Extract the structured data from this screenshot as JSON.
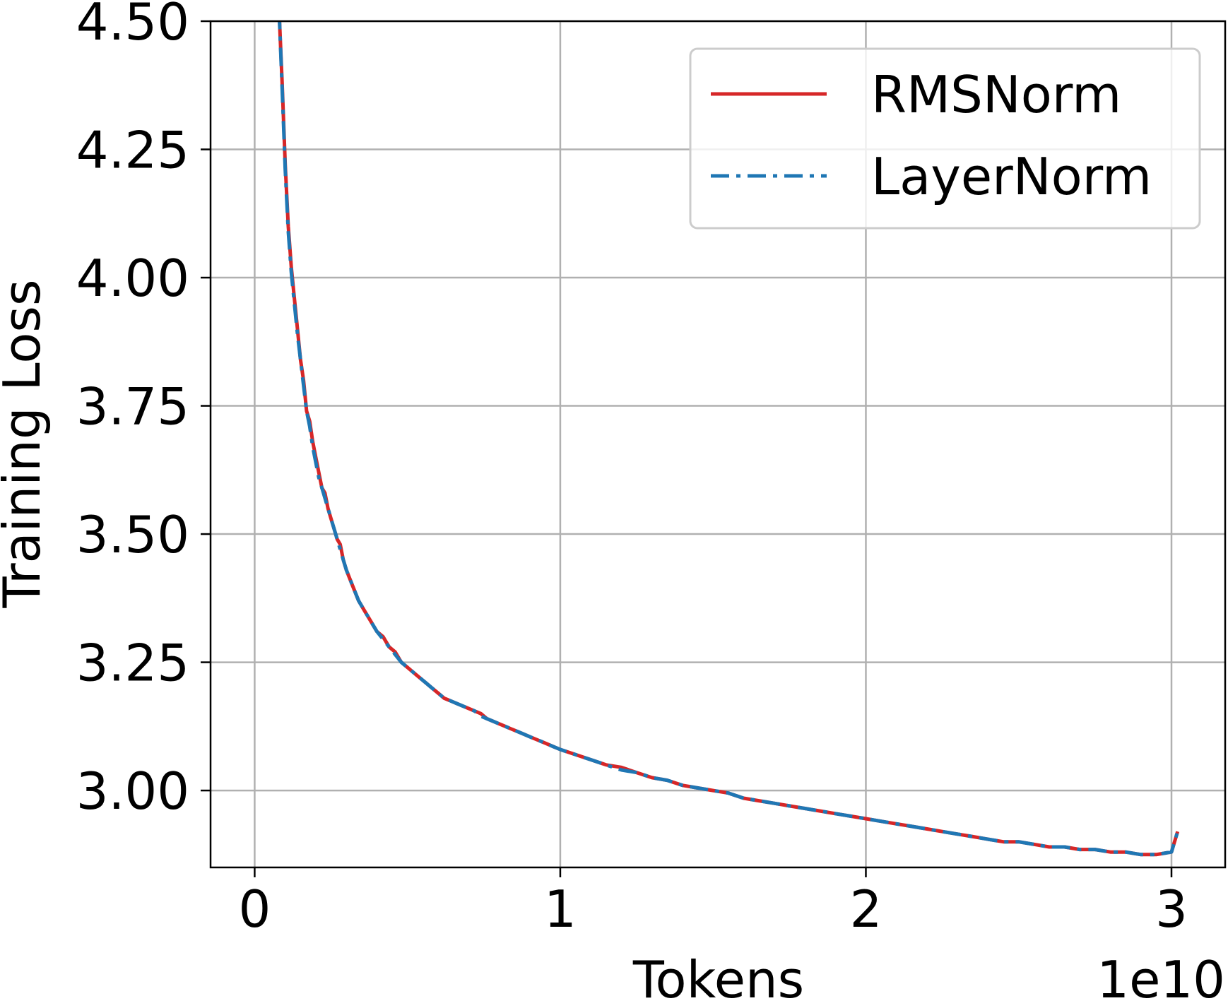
{
  "chart_data": {
    "type": "line",
    "title": "",
    "xlabel": "Tokens",
    "ylabel": "Training Loss",
    "x_scale_label": "1e10",
    "x_multiplier": 10000000000,
    "xlim": [
      -0.1443,
      3.1757
    ],
    "ylim": [
      2.85,
      4.5
    ],
    "x_ticks": [
      0,
      1,
      2,
      3
    ],
    "x_tick_labels": [
      "0",
      "1",
      "2",
      "3"
    ],
    "y_ticks": [
      3.0,
      3.25,
      3.5,
      3.75,
      4.0,
      4.25,
      4.5
    ],
    "y_tick_labels": [
      "3.00",
      "3.25",
      "3.50",
      "3.75",
      "4.00",
      "4.25",
      "4.50"
    ],
    "grid": true,
    "legend_position": "top-right",
    "series": [
      {
        "name": "RMSNorm",
        "color": "#d62728",
        "dash": "solid"
      },
      {
        "name": "LayerNorm",
        "color": "#1f77b4",
        "dash": "dashdot"
      }
    ],
    "x": [
      0.08,
      0.09,
      0.1,
      0.11,
      0.12,
      0.13,
      0.14,
      0.15,
      0.16,
      0.17,
      0.18,
      0.19,
      0.2,
      0.21,
      0.22,
      0.23,
      0.24,
      0.25,
      0.26,
      0.27,
      0.28,
      0.29,
      0.3,
      0.32,
      0.34,
      0.36,
      0.38,
      0.4,
      0.42,
      0.44,
      0.46,
      0.48,
      0.5,
      0.52,
      0.54,
      0.56,
      0.58,
      0.6,
      0.62,
      0.64,
      0.66,
      0.68,
      0.7,
      0.72,
      0.74,
      0.76,
      0.78,
      0.8,
      0.82,
      0.84,
      0.86,
      0.88,
      0.9,
      0.92,
      0.94,
      0.96,
      0.98,
      1.0,
      1.05,
      1.1,
      1.15,
      1.2,
      1.25,
      1.3,
      1.35,
      1.4,
      1.45,
      1.5,
      1.55,
      1.6,
      1.65,
      1.7,
      1.75,
      1.8,
      1.85,
      1.9,
      1.95,
      2.0,
      2.05,
      2.1,
      2.15,
      2.2,
      2.25,
      2.3,
      2.35,
      2.4,
      2.45,
      2.5,
      2.55,
      2.6,
      2.65,
      2.7,
      2.75,
      2.8,
      2.85,
      2.9,
      2.95,
      3.0,
      3.02
    ],
    "values_rms": [
      4.52,
      4.38,
      4.22,
      4.1,
      4.02,
      3.96,
      3.9,
      3.84,
      3.8,
      3.74,
      3.72,
      3.68,
      3.65,
      3.62,
      3.59,
      3.58,
      3.55,
      3.53,
      3.51,
      3.49,
      3.48,
      3.45,
      3.43,
      3.4,
      3.37,
      3.35,
      3.33,
      3.31,
      3.3,
      3.28,
      3.27,
      3.25,
      3.24,
      3.23,
      3.22,
      3.21,
      3.2,
      3.19,
      3.18,
      3.175,
      3.17,
      3.165,
      3.16,
      3.155,
      3.15,
      3.14,
      3.135,
      3.13,
      3.125,
      3.12,
      3.115,
      3.11,
      3.105,
      3.1,
      3.095,
      3.09,
      3.085,
      3.08,
      3.07,
      3.06,
      3.05,
      3.045,
      3.035,
      3.025,
      3.02,
      3.01,
      3.005,
      3.0,
      2.995,
      2.985,
      2.98,
      2.975,
      2.97,
      2.965,
      2.96,
      2.955,
      2.95,
      2.945,
      2.94,
      2.935,
      2.93,
      2.925,
      2.92,
      2.915,
      2.91,
      2.905,
      2.9,
      2.9,
      2.895,
      2.89,
      2.89,
      2.885,
      2.885,
      2.88,
      2.88,
      2.875,
      2.875,
      2.88,
      2.92
    ],
    "values_layer": [
      4.52,
      4.37,
      4.21,
      4.09,
      4.01,
      3.95,
      3.89,
      3.84,
      3.79,
      3.74,
      3.71,
      3.67,
      3.64,
      3.61,
      3.59,
      3.57,
      3.55,
      3.53,
      3.51,
      3.49,
      3.47,
      3.45,
      3.43,
      3.4,
      3.37,
      3.35,
      3.33,
      3.31,
      3.295,
      3.28,
      3.265,
      3.25,
      3.24,
      3.23,
      3.22,
      3.21,
      3.2,
      3.19,
      3.18,
      3.175,
      3.17,
      3.165,
      3.16,
      3.155,
      3.145,
      3.14,
      3.135,
      3.13,
      3.125,
      3.12,
      3.115,
      3.11,
      3.105,
      3.1,
      3.095,
      3.09,
      3.085,
      3.08,
      3.07,
      3.06,
      3.05,
      3.04,
      3.035,
      3.025,
      3.02,
      3.01,
      3.005,
      3.0,
      2.995,
      2.985,
      2.98,
      2.975,
      2.97,
      2.965,
      2.96,
      2.955,
      2.95,
      2.945,
      2.94,
      2.935,
      2.93,
      2.925,
      2.92,
      2.915,
      2.91,
      2.905,
      2.9,
      2.9,
      2.895,
      2.89,
      2.89,
      2.885,
      2.885,
      2.88,
      2.88,
      2.875,
      2.875,
      2.88,
      2.92
    ]
  }
}
